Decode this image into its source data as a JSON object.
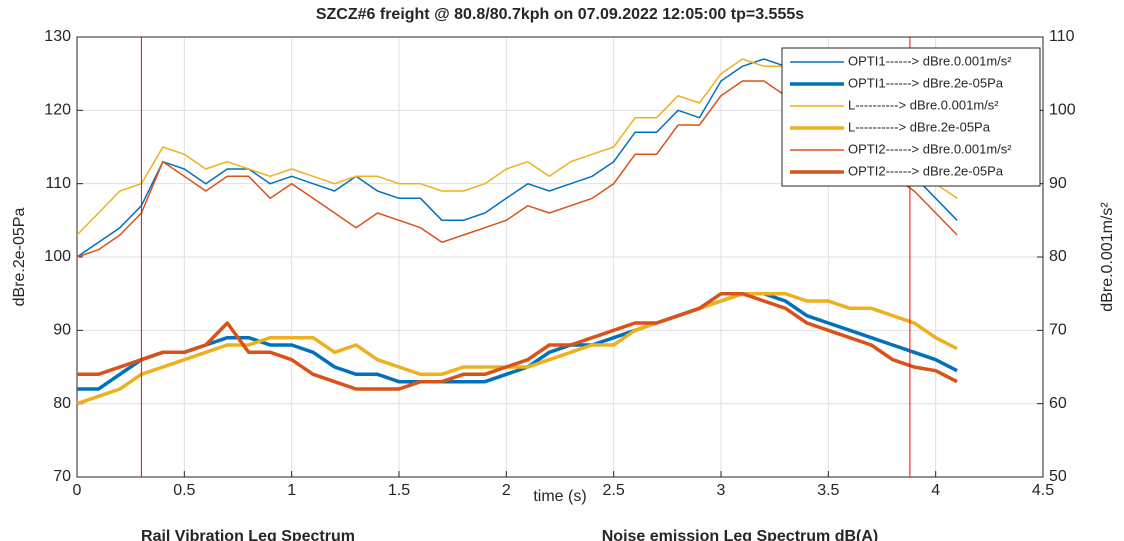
{
  "chart_data": {
    "type": "line",
    "title": "SZCZ#6   freight @ 80.8/80.7kph on 07.09.2022 12:05:00  tp=3.555s",
    "x_label": "time (s)",
    "y_label": "dBre.2e-05Pa",
    "y2_label": "dBre.0.001m/s²",
    "x": [
      0,
      0.1,
      0.2,
      0.3,
      0.4,
      0.5,
      0.6,
      0.7,
      0.8,
      0.9,
      1.0,
      1.1,
      1.2,
      1.3,
      1.4,
      1.5,
      1.6,
      1.7,
      1.8,
      1.9,
      2.0,
      2.1,
      2.2,
      2.3,
      2.4,
      2.5,
      2.6,
      2.7,
      2.8,
      2.9,
      3.0,
      3.1,
      3.2,
      3.3,
      3.4,
      3.5,
      3.6,
      3.7,
      3.8,
      3.9,
      4.0,
      4.1
    ],
    "series": [
      {
        "name": "OPTI1------> dBre.0.001m/s²",
        "color": "#0072BD",
        "linewidth": 1.5,
        "axis": "y2",
        "values": [
          80,
          82,
          84,
          87,
          93,
          92,
          90,
          92,
          92,
          90,
          91,
          90,
          89,
          91,
          89,
          88,
          88,
          85,
          85,
          86,
          88,
          90,
          89,
          90,
          91,
          93,
          97,
          97,
          100,
          99,
          104,
          106,
          107,
          106,
          104,
          101,
          98,
          96,
          93,
          91,
          88,
          85
        ]
      },
      {
        "name": "OPTI1------> dBre.2e-05Pa",
        "color": "#0072BD",
        "linewidth": 3.5,
        "values": [
          82,
          82,
          84,
          86,
          87,
          87,
          88,
          89,
          89,
          88,
          88,
          87,
          85,
          84,
          84,
          83,
          83,
          83,
          83,
          83,
          84,
          85,
          87,
          88,
          88,
          89,
          90,
          91,
          92,
          93,
          94,
          95,
          95,
          94,
          92,
          91,
          90,
          89,
          88,
          87,
          86,
          84.5
        ]
      },
      {
        "name": "L----------> dBre.0.001m/s²",
        "color": "#EDB120",
        "linewidth": 1.5,
        "axis": "y2",
        "values": [
          83,
          86,
          89,
          90,
          95,
          94,
          92,
          93,
          92,
          91,
          92,
          91,
          90,
          91,
          91,
          90,
          90,
          89,
          89,
          90,
          92,
          93,
          91,
          93,
          94,
          95,
          99,
          99,
          102,
          101,
          105,
          107,
          106,
          106,
          105,
          103,
          101,
          98,
          97,
          93,
          90,
          88
        ]
      },
      {
        "name": "L----------> dBre.2e-05Pa",
        "color": "#EDB120",
        "linewidth": 3.5,
        "values": [
          80,
          81,
          82,
          84,
          85,
          86,
          87,
          88,
          88,
          89,
          89,
          89,
          87,
          88,
          86,
          85,
          84,
          84,
          85,
          85,
          85,
          85,
          86,
          87,
          88,
          88,
          90,
          91,
          92,
          93,
          94,
          95,
          95,
          95,
          94,
          94,
          93,
          93,
          92,
          91,
          89,
          87.5
        ]
      },
      {
        "name": "OPTI2------> dBre.0.001m/s²",
        "color": "#D95319",
        "linewidth": 1.5,
        "axis": "y2",
        "values": [
          80,
          81,
          83,
          86,
          93,
          91,
          89,
          91,
          91,
          88,
          90,
          88,
          86,
          84,
          86,
          85,
          84,
          82,
          83,
          84,
          85,
          87,
          86,
          87,
          88,
          90,
          94,
          94,
          98,
          98,
          102,
          104,
          104,
          102,
          101,
          99,
          97,
          93,
          91,
          89,
          86,
          83
        ]
      },
      {
        "name": "OPTI2------> dBre.2e-05Pa",
        "color": "#D95319",
        "linewidth": 3.5,
        "values": [
          84,
          84,
          85,
          86,
          87,
          87,
          88,
          91,
          87,
          87,
          86,
          84,
          83,
          82,
          82,
          82,
          83,
          83,
          84,
          84,
          85,
          86,
          88,
          88,
          89,
          90,
          91,
          91,
          92,
          93,
          95,
          95,
          94,
          93,
          91,
          90,
          89,
          88,
          86,
          85,
          84.5,
          83
        ]
      }
    ],
    "xlim": [
      0,
      4.5
    ],
    "xticks": [
      0,
      0.5,
      1,
      1.5,
      2,
      2.5,
      3,
      3.5,
      4,
      4.5
    ],
    "ylim": [
      70,
      130
    ],
    "yticks": [
      70,
      80,
      90,
      100,
      110,
      120,
      130
    ],
    "y2lim": [
      50,
      110
    ],
    "y2ticks": [
      50,
      60,
      70,
      80,
      90,
      100,
      110
    ],
    "vlines": [
      0.3,
      3.88
    ],
    "vline_color": "#FF0000",
    "grid": true,
    "legend": "northeast",
    "annotations": [
      "Rail Vibration Leq Spectrum",
      "Noise emission Leq Spectrum dB(A)"
    ]
  }
}
